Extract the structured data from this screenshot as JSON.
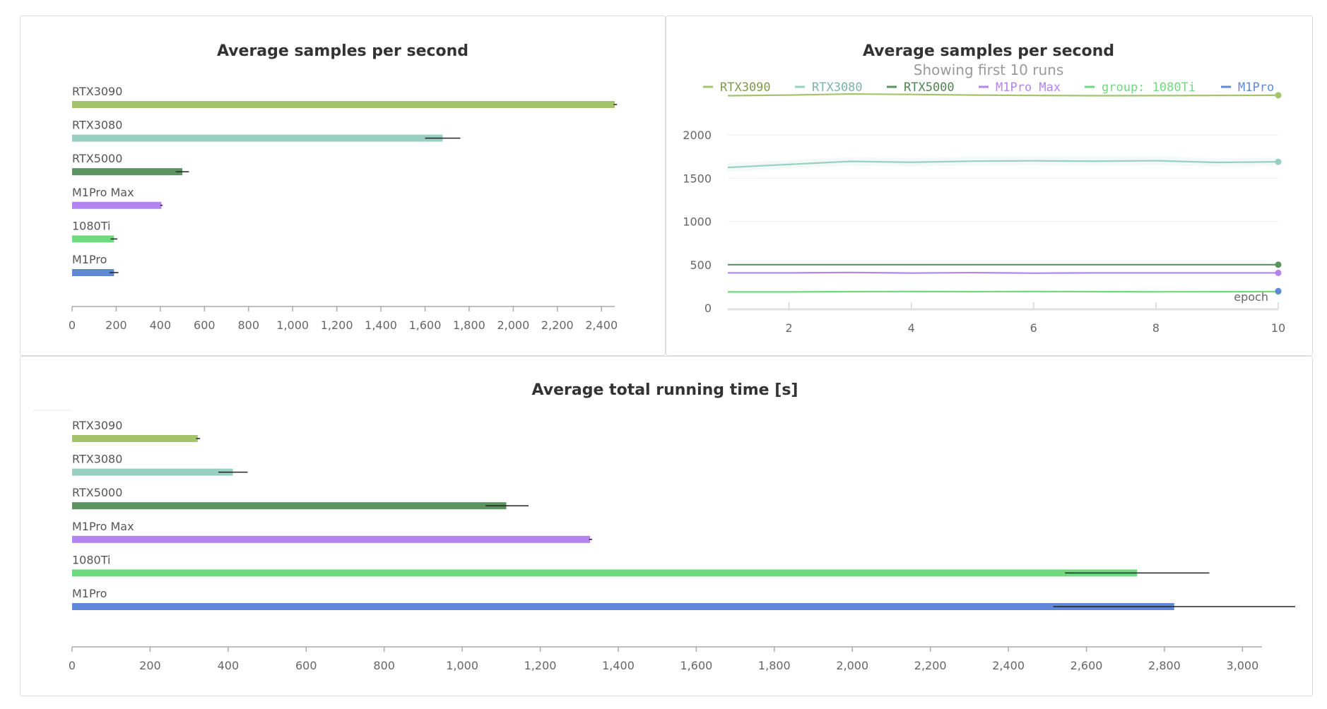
{
  "chart_data": [
    {
      "type": "bar",
      "orientation": "horizontal",
      "title": "Average samples per second",
      "categories": [
        "RTX3090",
        "RTX3080",
        "RTX5000",
        "M1Pro Max",
        "1080Ti",
        "M1Pro"
      ],
      "values": [
        2460,
        1680,
        500,
        405,
        190,
        190
      ],
      "errors": [
        [
          2455,
          2470
        ],
        [
          1600,
          1760
        ],
        [
          470,
          530
        ],
        [
          400,
          410
        ],
        [
          175,
          205
        ],
        [
          170,
          210
        ]
      ],
      "colors": [
        "#a3c46b",
        "#98cfc1",
        "#5a935f",
        "#b383f0",
        "#6fd97e",
        "#6088d8"
      ],
      "xlim": [
        0,
        2460
      ],
      "xticks": [
        0,
        200,
        400,
        600,
        800,
        1000,
        1200,
        1400,
        1600,
        1800,
        2000,
        2200,
        2400
      ],
      "xtick_labels": [
        "0",
        "200",
        "400",
        "600",
        "800",
        "1,000",
        "1,200",
        "1,400",
        "1,600",
        "1,800",
        "2,000",
        "2,200",
        "2,400"
      ]
    },
    {
      "type": "line",
      "title": "Average samples per second",
      "subtitle": "Showing first 10 runs",
      "xlabel": "epoch",
      "x": [
        1,
        2,
        3,
        4,
        5,
        6,
        7,
        8,
        9,
        10
      ],
      "xlim": [
        1,
        10
      ],
      "ylim": [
        0,
        2500
      ],
      "xticks": [
        2,
        4,
        6,
        8,
        10
      ],
      "yticks": [
        0,
        500,
        1000,
        1500,
        2000
      ],
      "series": [
        {
          "name": "RTX3090",
          "color": "#a3c46b",
          "text_color": "#7e9b4c",
          "values": [
            2455,
            2462,
            2475,
            2470,
            2462,
            2458,
            2455,
            2456,
            2458,
            2460
          ]
        },
        {
          "name": "RTX3080",
          "color": "#98cfc1",
          "text_color": "#7bb5a7",
          "values": [
            1625,
            1660,
            1695,
            1685,
            1698,
            1702,
            1697,
            1703,
            1683,
            1690
          ]
        },
        {
          "name": "RTX5000",
          "color": "#5a935f",
          "text_color": "#4e8453",
          "values": [
            500,
            500,
            500,
            500,
            500,
            500,
            500,
            500,
            500,
            500
          ]
        },
        {
          "name": "M1Pro Max",
          "color": "#b383f0",
          "text_color": "#b383f0",
          "values": [
            405,
            405,
            410,
            403,
            408,
            402,
            405,
            405,
            405,
            405
          ]
        },
        {
          "name": "group: 1080Ti",
          "color": "#6fd97e",
          "text_color": "#6fd97e",
          "values": [
            185,
            185,
            188,
            190,
            188,
            190,
            188,
            186,
            187,
            188
          ]
        },
        {
          "name": "M1Pro",
          "color": "#6088d8",
          "text_color": "#6088d8",
          "values": [
            null,
            null,
            null,
            null,
            null,
            null,
            null,
            null,
            null,
            195
          ]
        }
      ]
    },
    {
      "type": "bar",
      "orientation": "horizontal",
      "title": "Average total running time [s]",
      "categories": [
        "RTX3090",
        "RTX3080",
        "RTX5000",
        "M1Pro Max",
        "1080Ti",
        "M1Pro"
      ],
      "values": [
        322,
        412,
        1113,
        1328,
        2730,
        2825
      ],
      "errors": [
        [
          318,
          328
        ],
        [
          375,
          450
        ],
        [
          1060,
          1170
        ],
        [
          1325,
          1333
        ],
        [
          2545,
          2915
        ],
        [
          2515,
          3135
        ]
      ],
      "colors": [
        "#a3c46b",
        "#98cfc1",
        "#5a935f",
        "#b383f0",
        "#6fd97e",
        "#6088d8"
      ],
      "xlim": [
        0,
        3050
      ],
      "xticks": [
        0,
        200,
        400,
        600,
        800,
        1000,
        1200,
        1400,
        1600,
        1800,
        2000,
        2200,
        2400,
        2600,
        2800,
        3000
      ],
      "xtick_labels": [
        "0",
        "200",
        "400",
        "600",
        "800",
        "1,000",
        "1,200",
        "1,400",
        "1,600",
        "1,800",
        "2,000",
        "2,200",
        "2,400",
        "2,600",
        "2,800",
        "3,000"
      ]
    }
  ]
}
